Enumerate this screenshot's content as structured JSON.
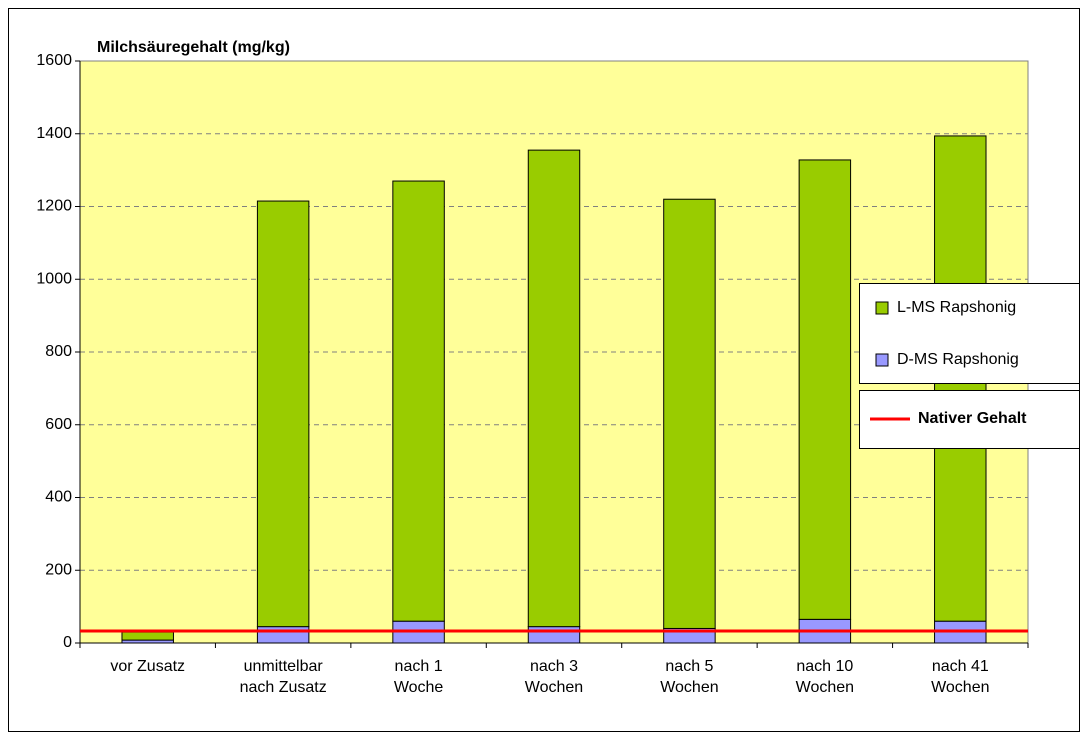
{
  "chart_data": {
    "type": "stacked_bar",
    "title": "Milchsäuregehalt (mg/kg)",
    "categories": [
      [
        "vor Zusatz"
      ],
      [
        "unmittelbar",
        "nach Zusatz"
      ],
      [
        "nach 1",
        "Woche"
      ],
      [
        "nach 3",
        "Wochen"
      ],
      [
        "nach 5",
        "Wochen"
      ],
      [
        "nach 10",
        "Wochen"
      ],
      [
        "nach 41",
        "Wochen"
      ]
    ],
    "series": [
      {
        "name": "D-MS Rapshonig",
        "color": "#9999ff",
        "values": [
          8,
          45,
          60,
          45,
          40,
          65,
          60
        ]
      },
      {
        "name": "L-MS Rapshonig",
        "color": "#99cc00",
        "values": [
          22,
          1170,
          1210,
          1310,
          1180,
          1263,
          1334
        ]
      }
    ],
    "reference_line": {
      "name": "Nativer Gehalt",
      "value": 33,
      "color": "#ff0000"
    },
    "ylim": [
      0,
      1600
    ],
    "yticks": [
      0,
      200,
      400,
      600,
      800,
      1000,
      1200,
      1400,
      1600
    ],
    "grid": true,
    "legend": "right",
    "background": "#ffff99"
  }
}
